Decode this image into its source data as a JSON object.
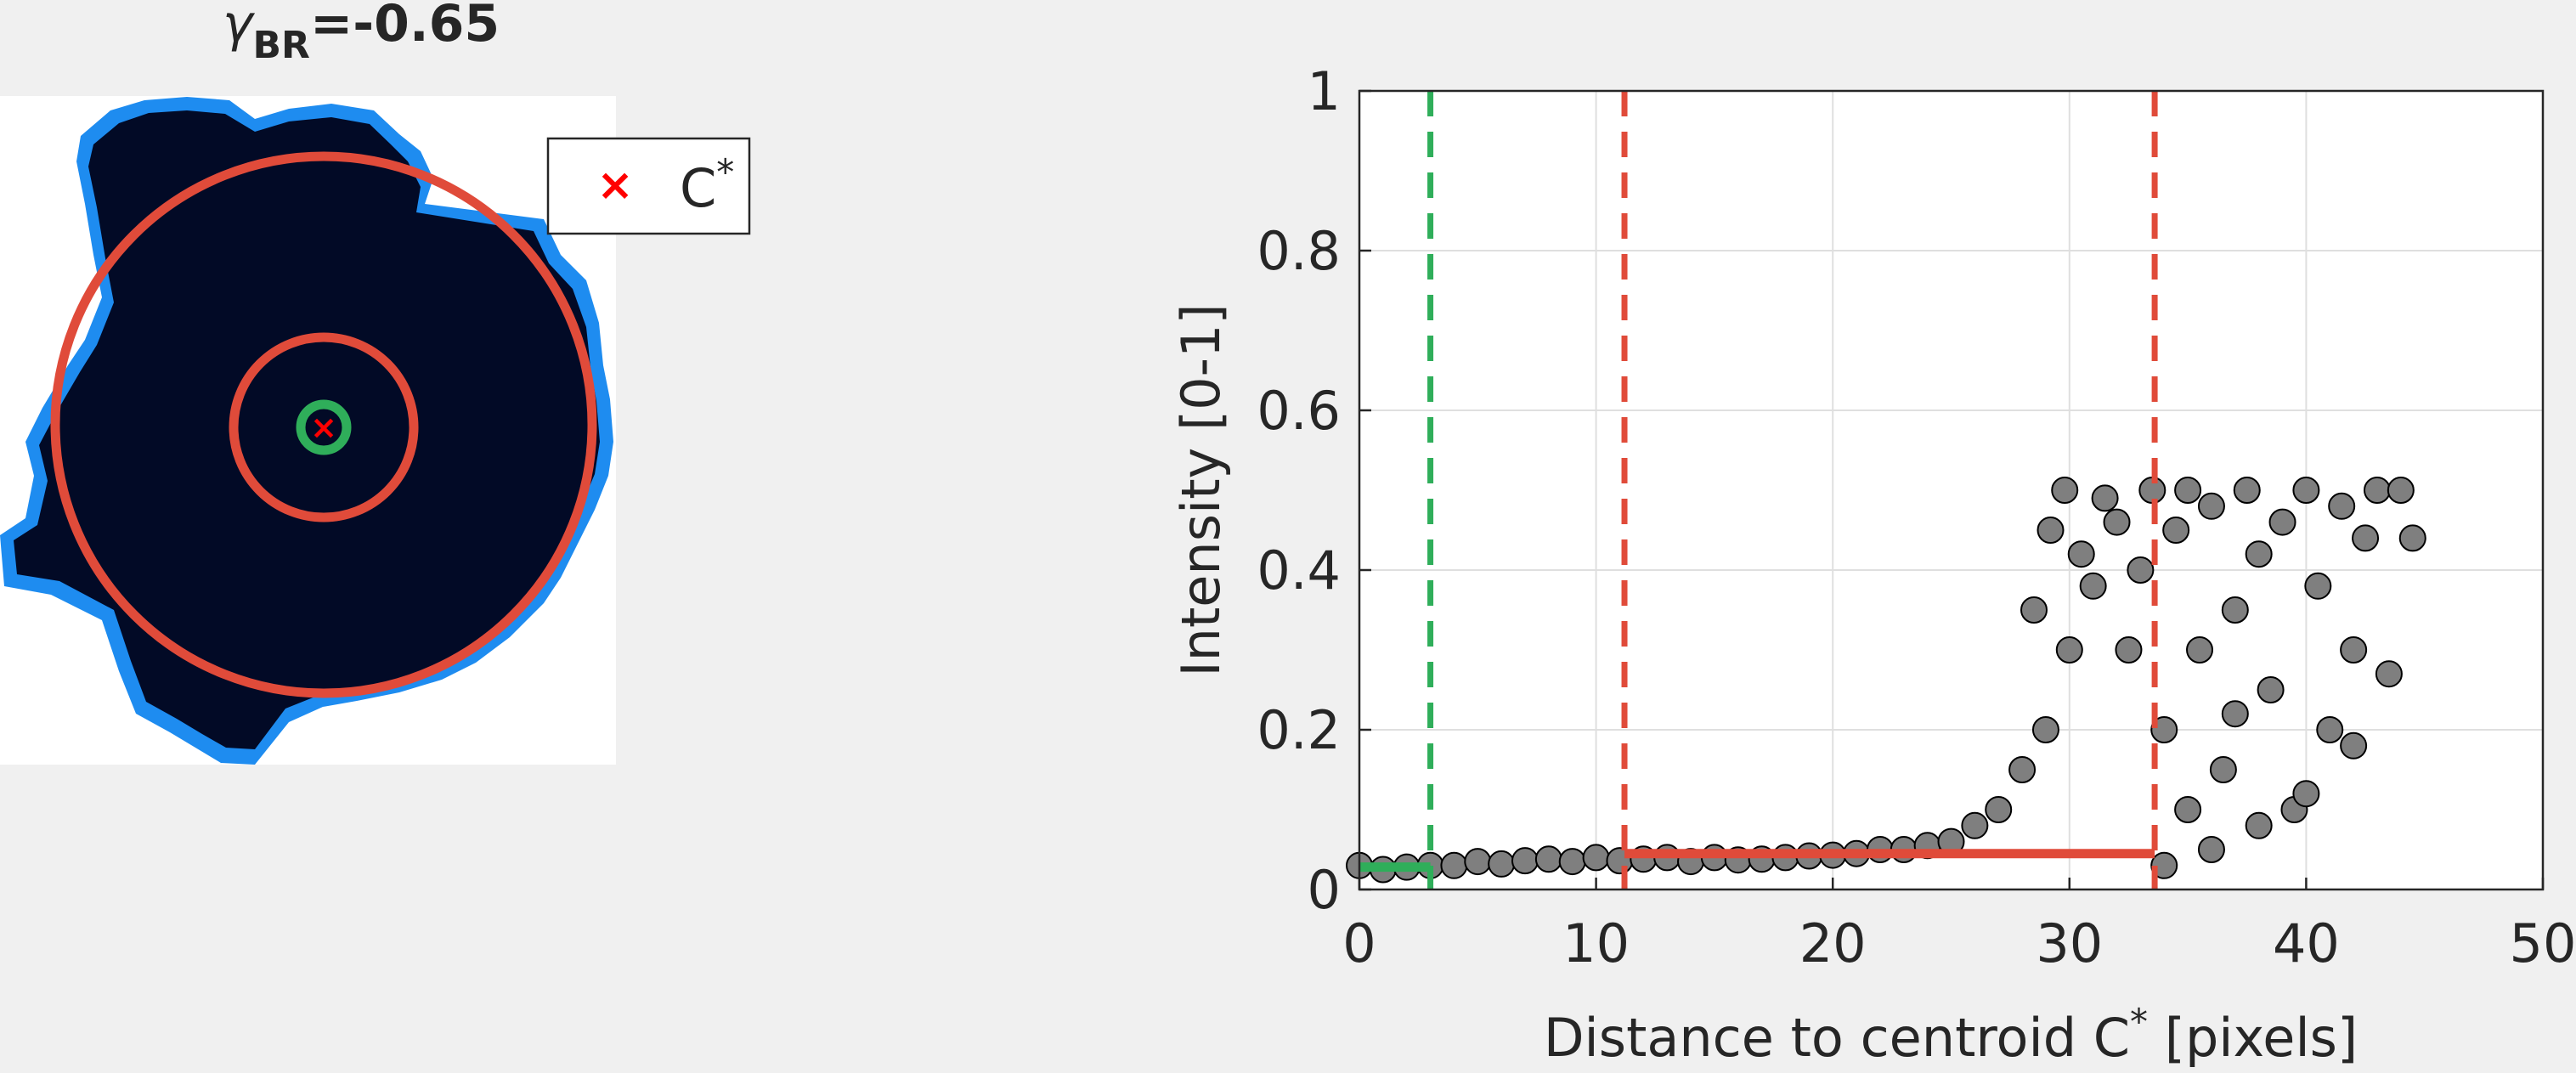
{
  "left_panel": {
    "title_symbol": "γ",
    "title_subscript": "BR",
    "title_value": "=-0.65",
    "legend": {
      "marker": "×",
      "label": "C",
      "superscript": "*"
    },
    "colors": {
      "cell_edge": "#1e90ff",
      "cell_core": "#020a26",
      "ring": "#e04b3a",
      "center_ring": "#2fae5a",
      "marker": "#ff0000"
    },
    "rings": [
      {
        "name": "outer",
        "color": "#e04b3a"
      },
      {
        "name": "middle",
        "color": "#e04b3a"
      },
      {
        "name": "inner",
        "color": "#2fae5a"
      }
    ]
  },
  "chart_data": {
    "type": "scatter",
    "xlabel": "Distance to centroid C",
    "xlabel_superscript": "*",
    "xlabel_suffix": " [pixels]",
    "ylabel": "Intensity [0-1]",
    "xlim": [
      0,
      50
    ],
    "ylim": [
      0,
      1
    ],
    "xticks": [
      "0",
      "10",
      "20",
      "30",
      "40",
      "50"
    ],
    "yticks": [
      "0",
      "0.2",
      "0.4",
      "0.6",
      "0.8",
      "1"
    ],
    "grid": true,
    "marker_color": "#7f7f7f",
    "marker_edge": "#000000",
    "vlines": [
      {
        "x": 3,
        "color": "#2fae5a",
        "style": "dashed"
      },
      {
        "x": 11.2,
        "color": "#e04b3a",
        "style": "dashed"
      },
      {
        "x": 33.6,
        "color": "#e04b3a",
        "style": "dashed"
      }
    ],
    "hsegments": [
      {
        "x0": 0,
        "x1": 3,
        "y": 0.028,
        "color": "#2fae5a"
      },
      {
        "x0": 11.2,
        "x1": 33.6,
        "y": 0.045,
        "color": "#e04b3a"
      }
    ],
    "points": [
      [
        0,
        0.03
      ],
      [
        1,
        0.025
      ],
      [
        2,
        0.028
      ],
      [
        3,
        0.03
      ],
      [
        4,
        0.03
      ],
      [
        5,
        0.035
      ],
      [
        6,
        0.032
      ],
      [
        7,
        0.036
      ],
      [
        8,
        0.038
      ],
      [
        9,
        0.035
      ],
      [
        10,
        0.04
      ],
      [
        11,
        0.036
      ],
      [
        12,
        0.038
      ],
      [
        13,
        0.04
      ],
      [
        14,
        0.035
      ],
      [
        15,
        0.04
      ],
      [
        16,
        0.037
      ],
      [
        17,
        0.038
      ],
      [
        18,
        0.04
      ],
      [
        19,
        0.042
      ],
      [
        20,
        0.043
      ],
      [
        21,
        0.045
      ],
      [
        22,
        0.05
      ],
      [
        23,
        0.05
      ],
      [
        24,
        0.055
      ],
      [
        25,
        0.06
      ],
      [
        26,
        0.08
      ],
      [
        27,
        0.1
      ],
      [
        28,
        0.15
      ],
      [
        29,
        0.2
      ],
      [
        28.5,
        0.35
      ],
      [
        29.2,
        0.45
      ],
      [
        29.8,
        0.5
      ],
      [
        30.5,
        0.42
      ],
      [
        31,
        0.38
      ],
      [
        30,
        0.3
      ],
      [
        31.5,
        0.49
      ],
      [
        32,
        0.46
      ],
      [
        32.5,
        0.3
      ],
      [
        33,
        0.4
      ],
      [
        33.5,
        0.5
      ],
      [
        34,
        0.2
      ],
      [
        34.5,
        0.45
      ],
      [
        35,
        0.5
      ],
      [
        35.5,
        0.3
      ],
      [
        36,
        0.48
      ],
      [
        36.5,
        0.15
      ],
      [
        37,
        0.35
      ],
      [
        37.5,
        0.5
      ],
      [
        38,
        0.42
      ],
      [
        38.5,
        0.25
      ],
      [
        39,
        0.46
      ],
      [
        39.5,
        0.1
      ],
      [
        40,
        0.5
      ],
      [
        40.5,
        0.38
      ],
      [
        41,
        0.2
      ],
      [
        41.5,
        0.48
      ],
      [
        42,
        0.3
      ],
      [
        42.5,
        0.44
      ],
      [
        43,
        0.5
      ],
      [
        43.5,
        0.27
      ],
      [
        44,
        0.5
      ],
      [
        44.5,
        0.44
      ],
      [
        36,
        0.05
      ],
      [
        38,
        0.08
      ],
      [
        40,
        0.12
      ],
      [
        35,
        0.1
      ],
      [
        42,
        0.18
      ],
      [
        34,
        0.03
      ],
      [
        37,
        0.22
      ]
    ]
  }
}
